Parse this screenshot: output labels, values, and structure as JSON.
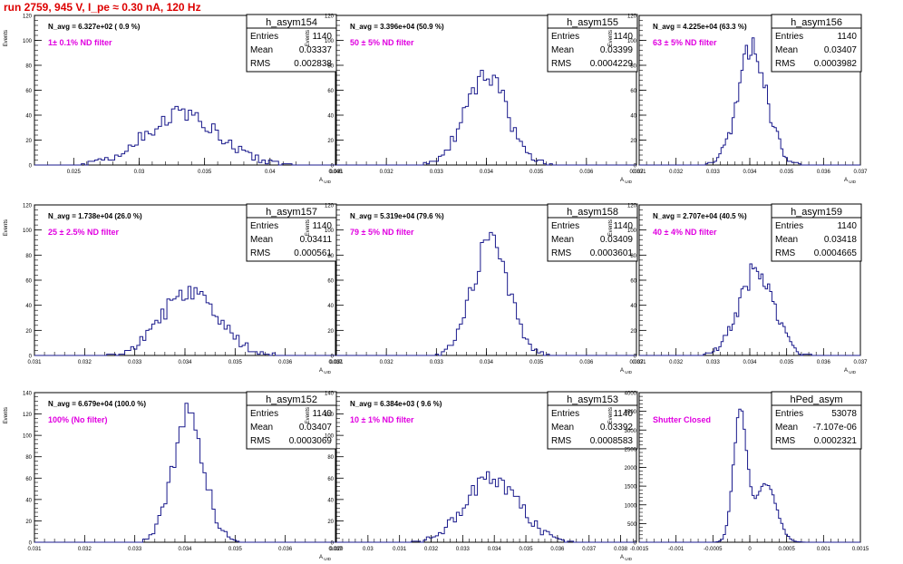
{
  "run_title": "run 2759,   945 V, I_pe ≈ 0.30 nA, 120 Hz",
  "colors": {
    "hist_line": "#1a1a8c",
    "run_title": "#dd0000",
    "filter_label": "#e000e0",
    "axis": "#000000",
    "background": "#ffffff"
  },
  "chart_data": [
    {
      "type": "histogram",
      "stats": {
        "name": "h_asym154",
        "entries_label": "Entries",
        "entries": "1140",
        "mean_label": "Mean",
        "mean": "0.03337",
        "rms_label": "RMS",
        "rms": "0.002838"
      },
      "navg": "N_avg = 6.327e+02 ( 0.9 %)",
      "filter_label": "1± 0.1% ND filter",
      "ylabel": "Events",
      "xlabel": "A_UID",
      "xlim": [
        0.022,
        0.045
      ],
      "ylim": [
        0,
        120
      ],
      "xticks": [
        "0.025",
        "0.03",
        "0.035",
        "0.04",
        "0.045"
      ],
      "xtick_values": [
        0.025,
        0.03,
        0.035,
        0.04,
        0.045
      ],
      "yticks": [
        0,
        20,
        40,
        60,
        80,
        100,
        120
      ],
      "dist": {
        "mu": 0.03337,
        "sigma": 0.002838,
        "peak": 41,
        "bins": 90,
        "seed": 154
      }
    },
    {
      "type": "histogram",
      "stats": {
        "name": "h_asym155",
        "entries_label": "Entries",
        "entries": "1140",
        "mean_label": "Mean",
        "mean": "0.03399",
        "rms_label": "RMS",
        "rms": "0.0004229"
      },
      "navg": "N_avg = 3.396e+04 (50.9 %)",
      "filter_label": "50 ± 5% ND filter",
      "ylabel": "Events",
      "xlabel": "A_UID",
      "xlim": [
        0.031,
        0.037
      ],
      "ylim": [
        0,
        120
      ],
      "xticks": [
        "0.031",
        "0.032",
        "0.033",
        "0.034",
        "0.035",
        "0.036",
        "0.037"
      ],
      "xtick_values": [
        0.031,
        0.032,
        0.033,
        0.034,
        0.035,
        0.036,
        0.037
      ],
      "yticks": [
        0,
        20,
        40,
        60,
        80,
        100,
        120
      ],
      "dist": {
        "mu": 0.03399,
        "sigma": 0.00042,
        "peak": 72,
        "bins": 100,
        "seed": 155
      }
    },
    {
      "type": "histogram",
      "stats": {
        "name": "h_asym156",
        "entries_label": "Entries",
        "entries": "1140",
        "mean_label": "Mean",
        "mean": "0.03407",
        "rms_label": "RMS",
        "rms": "0.0003982"
      },
      "navg": "N_avg = 4.225e+04 (63.3 %)",
      "filter_label": "63 ± 5% ND filter",
      "ylabel": "Events",
      "xlabel": "A_UID",
      "xlim": [
        0.031,
        0.037
      ],
      "ylim": [
        0,
        120
      ],
      "xticks": [
        "0.031",
        "0.032",
        "0.033",
        "0.034",
        "0.035",
        "0.036",
        "0.037"
      ],
      "xtick_values": [
        0.031,
        0.032,
        0.033,
        0.034,
        0.035,
        0.036,
        0.037
      ],
      "yticks": [
        0,
        20,
        40,
        60,
        80,
        100,
        120
      ],
      "dist": {
        "mu": 0.03407,
        "sigma": 0.0004,
        "peak": 92,
        "bins": 100,
        "seed": 156
      }
    },
    {
      "type": "histogram",
      "stats": {
        "name": "h_asym157",
        "entries_label": "Entries",
        "entries": "1140",
        "mean_label": "Mean",
        "mean": "0.03411",
        "rms_label": "RMS",
        "rms": "0.000561"
      },
      "navg": "N_avg = 1.738e+04 (26.0 %)",
      "filter_label": "25 ± 2.5% ND filter",
      "ylabel": "Events",
      "xlabel": "A_UID",
      "xlim": [
        0.031,
        0.037
      ],
      "ylim": [
        0,
        120
      ],
      "xticks": [
        "0.031",
        "0.032",
        "0.033",
        "0.034",
        "0.035",
        "0.036",
        "0.037"
      ],
      "xtick_values": [
        0.031,
        0.032,
        0.033,
        0.034,
        0.035,
        0.036,
        0.037
      ],
      "yticks": [
        0,
        20,
        40,
        60,
        80,
        100,
        120
      ],
      "dist": {
        "mu": 0.03411,
        "sigma": 0.00056,
        "peak": 53,
        "bins": 100,
        "seed": 157
      }
    },
    {
      "type": "histogram",
      "stats": {
        "name": "h_asym158",
        "entries_label": "Entries",
        "entries": "1140",
        "mean_label": "Mean",
        "mean": "0.03409",
        "rms_label": "RMS",
        "rms": "0.0003601"
      },
      "navg": "N_avg = 5.319e+04 (79.6 %)",
      "filter_label": "79 ± 5% ND filter",
      "ylabel": "Events",
      "xlabel": "A_UID",
      "xlim": [
        0.031,
        0.037
      ],
      "ylim": [
        0,
        120
      ],
      "xticks": [
        "0.031",
        "0.032",
        "0.033",
        "0.034",
        "0.035",
        "0.036",
        "0.037"
      ],
      "xtick_values": [
        0.031,
        0.032,
        0.033,
        0.034,
        0.035,
        0.036,
        0.037
      ],
      "yticks": [
        0,
        20,
        40,
        60,
        80,
        100,
        120
      ],
      "dist": {
        "mu": 0.03409,
        "sigma": 0.00036,
        "peak": 92,
        "bins": 100,
        "seed": 158
      }
    },
    {
      "type": "histogram",
      "stats": {
        "name": "h_asym159",
        "entries_label": "Entries",
        "entries": "1140",
        "mean_label": "Mean",
        "mean": "0.03418",
        "rms_label": "RMS",
        "rms": "0.0004665"
      },
      "navg": "N_avg = 2.707e+04 (40.5 %)",
      "filter_label": "40 ± 4% ND filter",
      "ylabel": "Events",
      "xlabel": "A_UID",
      "xlim": [
        0.031,
        0.037
      ],
      "ylim": [
        0,
        120
      ],
      "xticks": [
        "0.031",
        "0.032",
        "0.033",
        "0.034",
        "0.035",
        "0.036",
        "0.037"
      ],
      "xtick_values": [
        0.031,
        0.032,
        0.033,
        0.034,
        0.035,
        0.036,
        0.037
      ],
      "yticks": [
        0,
        20,
        40,
        60,
        80,
        100,
        120
      ],
      "dist": {
        "mu": 0.03418,
        "sigma": 0.00047,
        "peak": 67,
        "bins": 100,
        "seed": 159
      }
    },
    {
      "type": "histogram",
      "stats": {
        "name": "h_asym152",
        "entries_label": "Entries",
        "entries": "1140",
        "mean_label": "Mean",
        "mean": "0.03407",
        "rms_label": "RMS",
        "rms": "0.0003069"
      },
      "navg": "N_avg = 6.679e+04 (100.0 %)",
      "filter_label": "100% (No filter)",
      "ylabel": "Events",
      "xlabel": "A_UID",
      "xlim": [
        0.031,
        0.037
      ],
      "ylim": [
        0,
        140
      ],
      "xticks": [
        "0.031",
        "0.032",
        "0.033",
        "0.034",
        "0.035",
        "0.036",
        "0.037"
      ],
      "xtick_values": [
        0.031,
        0.032,
        0.033,
        0.034,
        0.035,
        0.036,
        0.037
      ],
      "yticks": [
        0,
        20,
        40,
        60,
        80,
        100,
        120,
        140
      ],
      "dist": {
        "mu": 0.03407,
        "sigma": 0.00031,
        "peak": 118,
        "bins": 100,
        "seed": 152
      }
    },
    {
      "type": "histogram",
      "stats": {
        "name": "h_asym153",
        "entries_label": "Entries",
        "entries": "1140",
        "mean_label": "Mean",
        "mean": "0.03392",
        "rms_label": "RMS",
        "rms": "0.0008583"
      },
      "navg": "N_avg = 6.384e+03 ( 9.6 %)",
      "filter_label": "10 ± 1% ND filter",
      "ylabel": "Events",
      "xlabel": "A_UID",
      "xlim": [
        0.029,
        0.0385
      ],
      "ylim": [
        0,
        140
      ],
      "xticks": [
        "0.029",
        "0.03",
        "0.031",
        "0.032",
        "0.033",
        "0.034",
        "0.035",
        "0.036",
        "0.037",
        "0.038"
      ],
      "xtick_values": [
        0.029,
        0.03,
        0.031,
        0.032,
        0.033,
        0.034,
        0.035,
        0.036,
        0.037,
        0.038
      ],
      "yticks": [
        0,
        20,
        40,
        60,
        80,
        100,
        120,
        140
      ],
      "dist": {
        "mu": 0.03392,
        "sigma": 0.00086,
        "peak": 58,
        "bins": 100,
        "seed": 153
      }
    },
    {
      "type": "histogram",
      "stats": {
        "name": "hPed_asym",
        "entries_label": "Entries",
        "entries": "53078",
        "mean_label": "Mean",
        "mean": "-7.107e-06",
        "rms_label": "RMS",
        "rms": "0.0002321"
      },
      "navg": "",
      "filter_label": "Shutter Closed",
      "ylabel": "Events",
      "xlabel": "",
      "xlim": [
        -0.0015,
        0.0015
      ],
      "ylim": [
        0,
        4000
      ],
      "xticks": [
        "-0.0015",
        "-0.001",
        "-0.0005",
        "0",
        "0.0005",
        "0.001",
        "0.0015"
      ],
      "xtick_values": [
        -0.0015,
        -0.001,
        -0.0005,
        0,
        0.0005,
        0.001,
        0.0015
      ],
      "yticks": [
        0,
        500,
        1000,
        1500,
        2000,
        2500,
        3000,
        3500,
        4000
      ],
      "dist": {
        "mu": -0.00013,
        "sigma": 9e-05,
        "peak": 3500,
        "bins": 100,
        "seed": 999,
        "second": {
          "mu": 0.00022,
          "sigma": 0.00014,
          "peak": 1550
        }
      }
    }
  ]
}
